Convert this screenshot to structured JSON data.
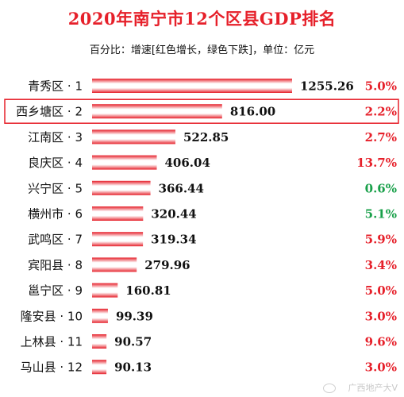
{
  "title": "2020年南宁市12个区县GDP排名",
  "subtitle": "百分比：增速[红色增长，绿色下跌]，单位：亿元",
  "watermark": "广西地产大V",
  "colors": {
    "up": "#e6202a",
    "down": "#19a04a",
    "bar": "#e6202a",
    "highlight_border": "#e6202a"
  },
  "chart_data": {
    "type": "bar",
    "orientation": "horizontal",
    "categories": [
      "青秀区 · 1",
      "西乡塘区 · 2",
      "江南区 · 3",
      "良庆区 · 4",
      "兴宁区 · 5",
      "横州市 · 6",
      "武鸣区 · 7",
      "宾阳县 · 8",
      "邕宁区 · 9",
      "隆安县 · 10",
      "上林县 · 11",
      "马山县 · 12"
    ],
    "values": [
      1255.26,
      816.0,
      522.85,
      406.04,
      366.44,
      320.44,
      319.34,
      279.96,
      160.81,
      99.39,
      90.57,
      90.13
    ],
    "value_labels": [
      "1255.26",
      "816.00",
      "522.85",
      "406.04",
      "366.44",
      "320.44",
      "319.34",
      "279.96",
      "160.81",
      "99.39",
      "90.57",
      "90.13"
    ],
    "growth_labels": [
      "5.0%",
      "2.2%",
      "2.7%",
      "13.7%",
      "0.6%",
      "5.1%",
      "5.9%",
      "3.4%",
      "5.0%",
      "3.0%",
      "9.6%",
      "3.0%"
    ],
    "growth_colors": [
      "up",
      "up",
      "up",
      "up",
      "down",
      "down",
      "up",
      "up",
      "up",
      "up",
      "up",
      "up"
    ],
    "highlighted_index": 1,
    "xlim": [
      0,
      1255.26
    ]
  }
}
